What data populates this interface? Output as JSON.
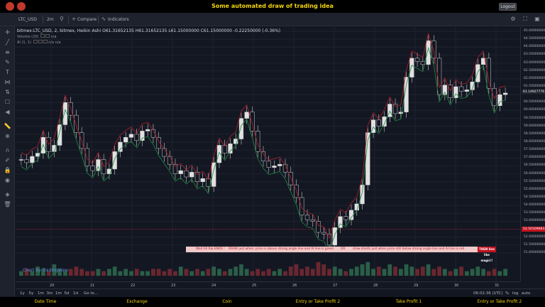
{
  "app": {
    "title": "Some automated draw of trading idea",
    "logout_label": "Logout"
  },
  "toolbar": {
    "symbol": "LTC_USD",
    "interval": "2m",
    "compare_label": "Compare",
    "indicators_label": "Indicators"
  },
  "legend": {
    "symbol_line": "bitmex:LTC_USD, 2, bitmex, Heikin Ashi",
    "open": "O61.31652135",
    "high": "H61.31652135",
    "low": "L61.15000000",
    "close": "C61.15000000",
    "change": "-0.22250000 (-0.36%)",
    "volume_label": "Volume (20)",
    "volume_value": "n/a",
    "ai_label": "AI (1, 1)",
    "ai_value": "n/a  n/a"
  },
  "price_axis": {
    "labels": [
      "65.00000000",
      "64.50000000",
      "64.00000000",
      "63.50000000",
      "63.00000000",
      "62.50000000",
      "62.00000000",
      "61.50000000",
      "61.00000000",
      "60.50000000",
      "60.00000000",
      "59.50000000",
      "59.00000000",
      "58.50000000",
      "58.00000000",
      "57.50000000",
      "57.00000000",
      "56.50000000",
      "56.00000000",
      "55.50000000",
      "55.00000000",
      "54.50000000",
      "54.00000000",
      "53.50000000",
      "53.00000000",
      "52.50000000",
      "52.00000000",
      "51.50000000",
      "51.00000000"
    ],
    "current_tag": "61.14927776",
    "red_tag": "52.50109683",
    "current_color": "#1e222d",
    "red_color": "#c0121f"
  },
  "time_axis": {
    "labels": [
      "20",
      "21",
      "22",
      "23",
      "24",
      "25",
      "26",
      "27",
      "28",
      "29",
      "30",
      "31"
    ],
    "time_readout": "06:02:36 (UTC)",
    "percent_label": "%",
    "log_label": "log",
    "auto_label": "auto"
  },
  "periods": [
    "1y",
    "5y",
    "1m",
    "3m",
    "1m",
    "5d",
    "1d"
  ],
  "goto_label": "Go to...",
  "strip": {
    "seg1": "Wait till Rip ENDS !",
    "seg2": "DRAW just when: price is above strong angle line and AI line is green",
    "seg3": "OR",
    "seg4": "draw shorts just when price still below strong angle line and AI line is red",
    "end": "THEN line like magic!!"
  },
  "watermark": "Chart by TradingView",
  "footer_tabs": [
    "Date Time",
    "Exchange",
    "Coin",
    "Entry or Take Profit 2",
    "Take Profit 1",
    "Entry or Take Profit 2"
  ],
  "chart_data": {
    "type": "candlestick",
    "title": "bitmex:LTC_USD, 2, bitmex, Heikin Ashi",
    "ylim": [
      51.0,
      65.0
    ],
    "x_ticks": [
      "20",
      "21",
      "22",
      "23",
      "24",
      "25",
      "26",
      "27",
      "28",
      "29",
      "30",
      "31"
    ],
    "series": [
      {
        "name": "price",
        "values": [
          56.9,
          56.7,
          57.1,
          57.3,
          58.3,
          57.4,
          57.8,
          59.1,
          60.5,
          59.7,
          58.6,
          57.6,
          56.5,
          56.2,
          56.9,
          56.0,
          56.3,
          57.4,
          58.0,
          58.3,
          58.5,
          58.1,
          58.7,
          58.8,
          58.3,
          57.6,
          57.1,
          56.6,
          56.0,
          56.2,
          55.8,
          56.1,
          55.5,
          55.7,
          55.2,
          56.7,
          57.8,
          57.3,
          57.9,
          58.2,
          59.5,
          59.9,
          58.7,
          57.4,
          56.8,
          56.4,
          56.5,
          56.6,
          56.1,
          55.3,
          54.5,
          53.4,
          53.1,
          53.0,
          52.3,
          52.2,
          51.5,
          52.6,
          53.3,
          53.1,
          53.7,
          54.1,
          55.3,
          58.6,
          59.4,
          59.0,
          59.6,
          60.4,
          59.8,
          59.9,
          62.1,
          63.3,
          63.1,
          62.9,
          64.4,
          63.3,
          61.0,
          61.6,
          60.8,
          61.5,
          61.2,
          61.3,
          61.8,
          62.9,
          63.3,
          61.4,
          60.3,
          61.0,
          61.1
        ]
      },
      {
        "name": "volume",
        "values": [
          2,
          3,
          2,
          4,
          3,
          2,
          5,
          3,
          2,
          3,
          4,
          3,
          2,
          2,
          3,
          2,
          3,
          4,
          2,
          3,
          2,
          3,
          2,
          2,
          3,
          3,
          2,
          3,
          2,
          4,
          3,
          2,
          3,
          2,
          3,
          4,
          3,
          2,
          3,
          4,
          5,
          3,
          2,
          3,
          2,
          3,
          2,
          3,
          2,
          4,
          5,
          3,
          4,
          3,
          6,
          5,
          3,
          4,
          3,
          2,
          3,
          4,
          5,
          6,
          3,
          4,
          3,
          5,
          4,
          3,
          5,
          4,
          3,
          4,
          5,
          3,
          4,
          3,
          2,
          3,
          4,
          2,
          3,
          4,
          3,
          2,
          3,
          2,
          3
        ]
      }
    ]
  }
}
